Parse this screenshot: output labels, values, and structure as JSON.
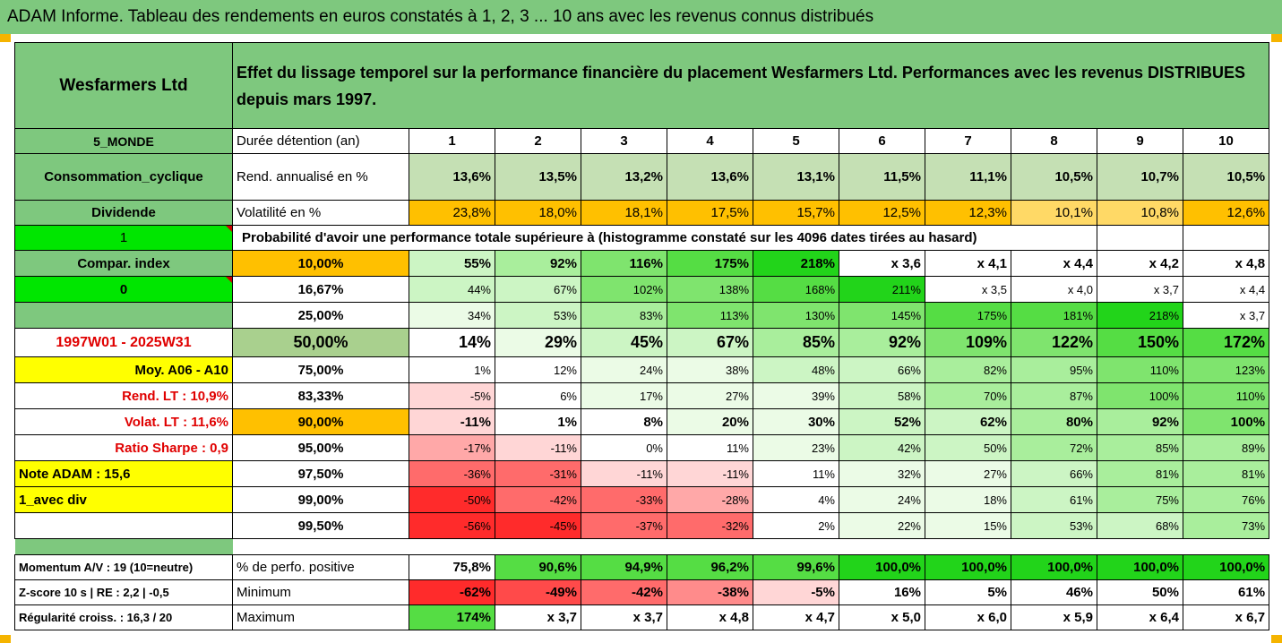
{
  "header_title": "ADAM Informe. Tableau des rendements en euros constatés à 1, 2, 3 ... 10 ans avec les revenus connus distribués",
  "left": {
    "company": "Wesfarmers Ltd",
    "region": "5_MONDE",
    "sector": "Consommation_cyclique",
    "dividend_label": "Dividende",
    "one": "1",
    "compar_index": "Compar. index",
    "zero": "0",
    "period": "1997W01 - 2025W31",
    "moy": "Moy. A06 - A10",
    "rend_lt": "Rend. LT :   10,9%",
    "volat_lt": "Volat. LT :   11,6%",
    "sharpe": "Ratio Sharpe :   0,9",
    "note": "Note ADAM : 15,6",
    "avec_div": "1_avec div",
    "momentum": "Momentum A/V : 19 (10=neutre)",
    "zscore": "Z-score 10 s  | RE : 2,2 | -0,5",
    "regularite": "Régularité croiss. : 16,3 / 20"
  },
  "description": "Effet du lissage temporel sur la performance financière du placement Wesfarmers Ltd. Performances avec les revenus DISTRIBUES depuis mars 1997.",
  "duree_label": "Durée détention (an)",
  "years": [
    "1",
    "2",
    "3",
    "4",
    "5",
    "6",
    "7",
    "8",
    "9",
    "10"
  ],
  "rend_label": "Rend. annualisé en %",
  "rend": [
    "13,6%",
    "13,5%",
    "13,2%",
    "13,6%",
    "13,1%",
    "11,5%",
    "11,1%",
    "10,5%",
    "10,7%",
    "10,5%"
  ],
  "vol_label": "Volatilité en %",
  "vol": [
    "23,8%",
    "18,0%",
    "18,1%",
    "17,5%",
    "15,7%",
    "12,5%",
    "12,3%",
    "10,1%",
    "10,8%",
    "12,6%"
  ],
  "prob_label": "Probabilité d'avoir une performance totale supérieure à (histogramme constaté sur les 4096 dates tirées au hasard)",
  "quantiles": [
    {
      "p": "10,00%",
      "v": [
        "55%",
        "92%",
        "116%",
        "175%",
        "218%",
        "x 3,6",
        "x 4,1",
        "x 4,4",
        "x 4,2",
        "x 4,8"
      ]
    },
    {
      "p": "16,67%",
      "v": [
        "44%",
        "67%",
        "102%",
        "138%",
        "168%",
        "211%",
        "x 3,5",
        "x 4,0",
        "x 3,7",
        "x 4,4"
      ]
    },
    {
      "p": "25,00%",
      "v": [
        "34%",
        "53%",
        "83%",
        "113%",
        "130%",
        "145%",
        "175%",
        "181%",
        "218%",
        "x 3,7"
      ]
    },
    {
      "p": "50,00%",
      "v": [
        "14%",
        "29%",
        "45%",
        "67%",
        "85%",
        "92%",
        "109%",
        "122%",
        "150%",
        "172%"
      ]
    },
    {
      "p": "75,00%",
      "v": [
        "1%",
        "12%",
        "24%",
        "38%",
        "48%",
        "66%",
        "82%",
        "95%",
        "110%",
        "123%"
      ]
    },
    {
      "p": "83,33%",
      "v": [
        "-5%",
        "6%",
        "17%",
        "27%",
        "39%",
        "58%",
        "70%",
        "87%",
        "100%",
        "110%"
      ]
    },
    {
      "p": "90,00%",
      "v": [
        "-11%",
        "1%",
        "8%",
        "20%",
        "30%",
        "52%",
        "62%",
        "80%",
        "92%",
        "100%"
      ]
    },
    {
      "p": "95,00%",
      "v": [
        "-17%",
        "-11%",
        "0%",
        "11%",
        "23%",
        "42%",
        "50%",
        "72%",
        "85%",
        "89%"
      ]
    },
    {
      "p": "97,50%",
      "v": [
        "-36%",
        "-31%",
        "-11%",
        "-11%",
        "11%",
        "32%",
        "27%",
        "66%",
        "81%",
        "81%"
      ]
    },
    {
      "p": "99,00%",
      "v": [
        "-50%",
        "-42%",
        "-33%",
        "-28%",
        "4%",
        "24%",
        "18%",
        "61%",
        "75%",
        "76%"
      ]
    },
    {
      "p": "99,50%",
      "v": [
        "-56%",
        "-45%",
        "-37%",
        "-32%",
        "2%",
        "22%",
        "15%",
        "53%",
        "68%",
        "73%"
      ]
    }
  ],
  "pos_label": "% de perfo. positive",
  "pos": [
    "75,8%",
    "90,6%",
    "94,9%",
    "96,2%",
    "99,6%",
    "100,0%",
    "100,0%",
    "100,0%",
    "100,0%",
    "100,0%"
  ],
  "min_label": "Minimum",
  "min": [
    "-62%",
    "-49%",
    "-42%",
    "-38%",
    "-5%",
    "16%",
    "5%",
    "46%",
    "50%",
    "61%"
  ],
  "max_label": "Maximum",
  "max": [
    "174%",
    "x 3,7",
    "x 3,7",
    "x 4,8",
    "x 4,7",
    "x 5,0",
    "x 6,0",
    "x 5,9",
    "x 6,4",
    "x 6,7"
  ],
  "colors": {
    "green_header": "#7ec87e",
    "bright_green": "#00e600",
    "orange": "#ffc000",
    "yellow": "#ffff00",
    "red_text": "#e00000"
  }
}
